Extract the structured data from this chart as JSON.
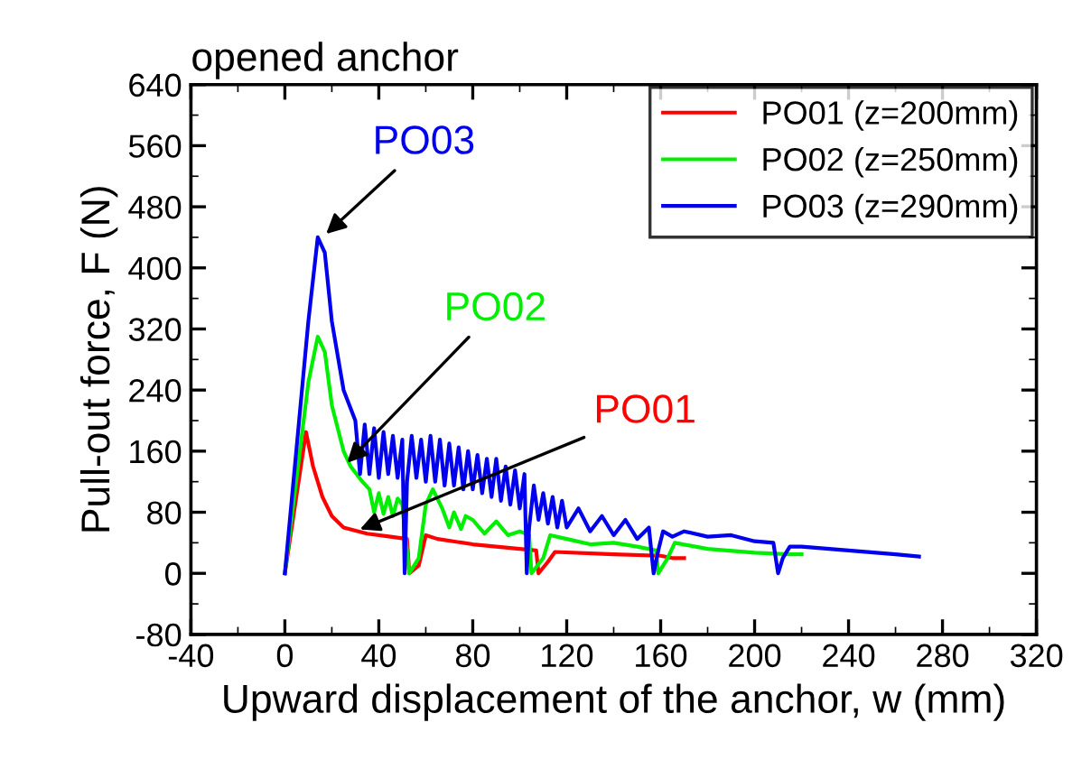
{
  "chart_data": {
    "type": "line",
    "title": "opened anchor",
    "xlabel": "Upward displacement of the anchor, w (mm)",
    "ylabel": "Pull-out force, F (N)",
    "xlim": [
      -40,
      320
    ],
    "xticks": [
      {
        "value": -40,
        "label": "-40"
      },
      0,
      40,
      80,
      120,
      160,
      200,
      240,
      280,
      320
    ],
    "ylim": [
      -80,
      640
    ],
    "yticks": [
      {
        "value": -80,
        "label": "-80"
      },
      0,
      80,
      160,
      240,
      320,
      400,
      480,
      560,
      640
    ],
    "grid": false,
    "legend": "top right",
    "line_style": "solid",
    "marker": "none",
    "series": [
      {
        "name": "PO01 (z=200mm)",
        "color": "#ff0000",
        "x": [
          0,
          9,
          12,
          16,
          20,
          25,
          35,
          45,
          52,
          53,
          57,
          60,
          65,
          80,
          100,
          107,
          108,
          112,
          115,
          140,
          160,
          165,
          170
        ],
        "values": [
          0,
          185,
          140,
          100,
          75,
          60,
          52,
          48,
          45,
          0,
          10,
          50,
          45,
          38,
          32,
          30,
          0,
          15,
          28,
          25,
          23,
          20,
          20
        ]
      },
      {
        "name": "PO02 (z=250mm)",
        "color": "#00ee00",
        "x": [
          0,
          10,
          14,
          17,
          20,
          25,
          28,
          33,
          36,
          38,
          40,
          42,
          44,
          46,
          48,
          50,
          53,
          57,
          60,
          63,
          67,
          70,
          72,
          75,
          77,
          80,
          85,
          90,
          95,
          100,
          104,
          105,
          110,
          113,
          120,
          130,
          140,
          150,
          158,
          159,
          163,
          166,
          180,
          200,
          215,
          220
        ],
        "values": [
          0,
          250,
          310,
          290,
          220,
          160,
          140,
          120,
          110,
          80,
          105,
          78,
          100,
          75,
          98,
          90,
          0,
          20,
          90,
          110,
          85,
          60,
          80,
          58,
          75,
          70,
          52,
          68,
          50,
          55,
          50,
          0,
          20,
          50,
          45,
          38,
          40,
          35,
          30,
          0,
          20,
          40,
          32,
          27,
          25,
          25
        ]
      },
      {
        "name": "PO03 (z=290mm)",
        "color": "#0000ee",
        "x": [
          0,
          10,
          14,
          17,
          20,
          25,
          30,
          32,
          34,
          36,
          38,
          40,
          42,
          44,
          46,
          48,
          50,
          51,
          52,
          54,
          56,
          58,
          60,
          62,
          64,
          66,
          68,
          70,
          72,
          74,
          76,
          78,
          80,
          82,
          84,
          86,
          88,
          90,
          92,
          94,
          96,
          98,
          100,
          102,
          103,
          104,
          106,
          108,
          110,
          112,
          114,
          116,
          118,
          120,
          125,
          130,
          135,
          140,
          145,
          150,
          155,
          157,
          159,
          161,
          165,
          170,
          180,
          190,
          200,
          208,
          210,
          212,
          215,
          220,
          240,
          260,
          270
        ],
        "values": [
          0,
          330,
          440,
          420,
          330,
          240,
          200,
          130,
          195,
          130,
          190,
          125,
          185,
          130,
          180,
          125,
          175,
          0,
          120,
          180,
          125,
          175,
          120,
          180,
          120,
          175,
          115,
          170,
          115,
          165,
          110,
          160,
          110,
          155,
          105,
          150,
          100,
          150,
          95,
          140,
          90,
          135,
          85,
          130,
          0,
          60,
          115,
          70,
          105,
          65,
          100,
          60,
          95,
          60,
          85,
          55,
          75,
          50,
          70,
          45,
          60,
          0,
          30,
          55,
          48,
          55,
          48,
          50,
          42,
          40,
          0,
          20,
          35,
          35,
          30,
          25,
          22
        ]
      }
    ],
    "annotations": [
      {
        "text": "PO03",
        "x": 16,
        "y": 440
      },
      {
        "text": "PO02",
        "x": 25,
        "y": 140
      },
      {
        "text": "PO01",
        "x": 30,
        "y": 55
      }
    ]
  }
}
